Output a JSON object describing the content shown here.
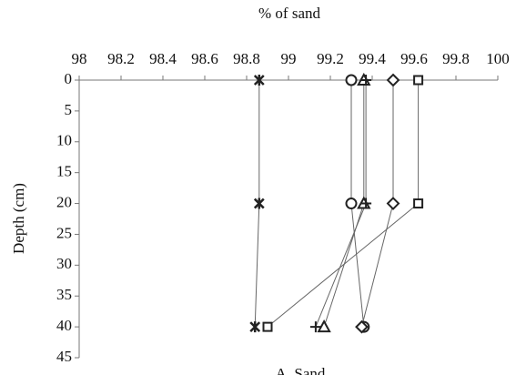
{
  "chart_data": {
    "type": "line",
    "xlabel": "% of sand",
    "ylabel": "Depth (cm)",
    "caption": "A. Sand",
    "xlim": [
      98,
      100
    ],
    "xticks": [
      98,
      98.2,
      98.4,
      98.6,
      98.8,
      99,
      99.2,
      99.4,
      99.6,
      99.8,
      100
    ],
    "ylim": [
      0,
      45
    ],
    "yticks": [
      0,
      5,
      10,
      15,
      20,
      25,
      30,
      35,
      40,
      45
    ],
    "y_inverted": true,
    "grid": false,
    "series": [
      {
        "marker": "x",
        "color": "#222",
        "y": [
          0,
          20,
          40
        ],
        "values": [
          98.86,
          98.86,
          98.84
        ]
      },
      {
        "marker": "circle",
        "color": "#222",
        "y": [
          0,
          20,
          40
        ],
        "values": [
          99.3,
          99.3,
          99.36
        ]
      },
      {
        "marker": "triangle",
        "color": "#222",
        "y": [
          0,
          20,
          40
        ],
        "values": [
          99.36,
          99.36,
          99.17
        ]
      },
      {
        "marker": "plus",
        "color": "#222",
        "y": [
          0,
          20,
          40
        ],
        "values": [
          99.37,
          99.37,
          99.13
        ]
      },
      {
        "marker": "diamond",
        "color": "#222",
        "y": [
          0,
          20,
          40
        ],
        "values": [
          99.5,
          99.5,
          99.35
        ]
      },
      {
        "marker": "square",
        "color": "#222",
        "y": [
          0,
          20,
          40
        ],
        "values": [
          99.62,
          99.62,
          98.9
        ]
      }
    ]
  }
}
